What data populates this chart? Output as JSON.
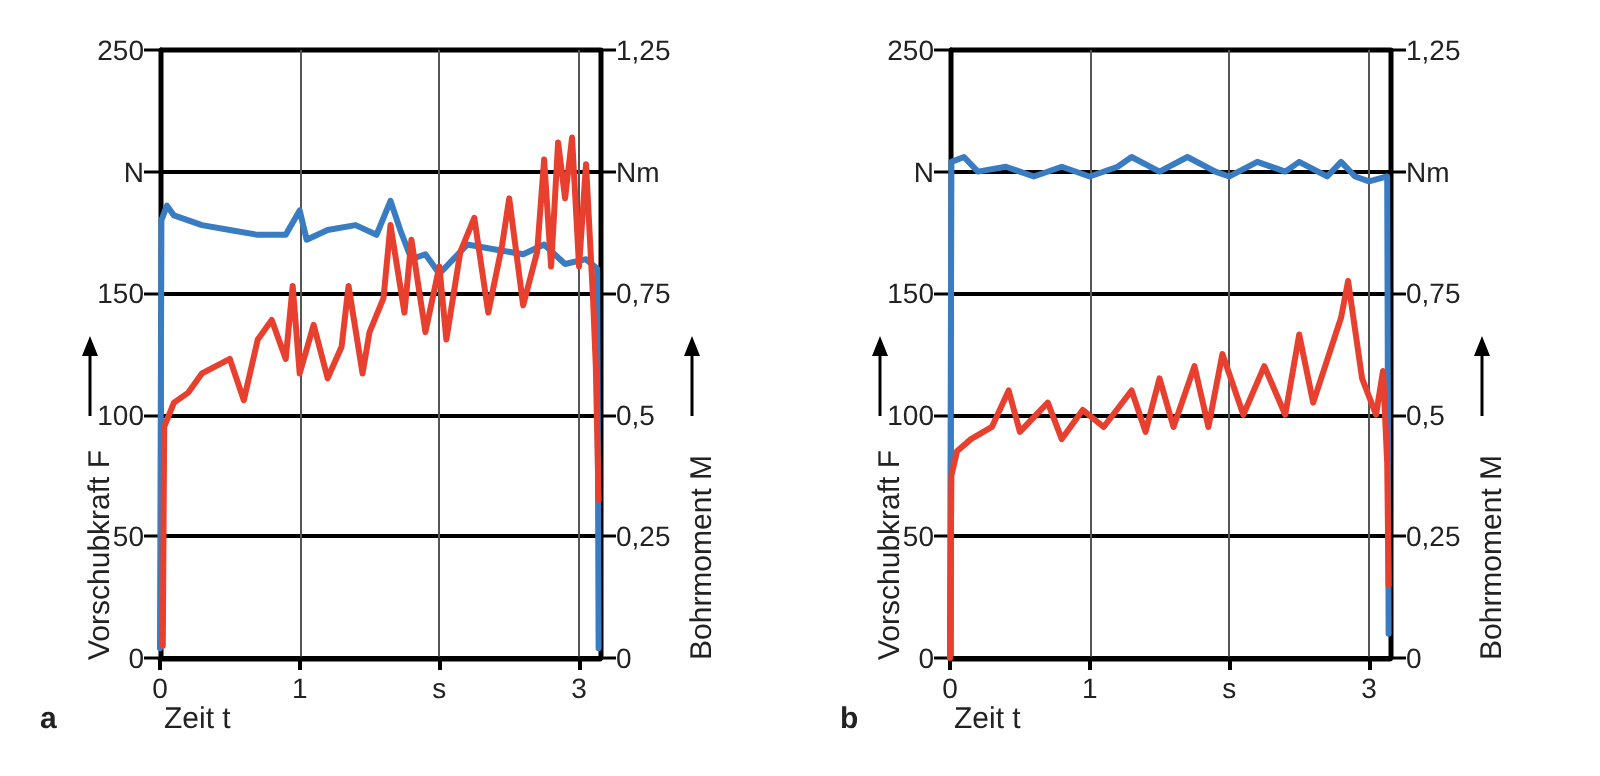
{
  "chart_data": [
    {
      "type": "line",
      "xlabel": "Zeit t",
      "ylabel": "Vorschubkraft F",
      "y2label": "Bohrmoment M",
      "annotations": [
        "a"
      ],
      "grid": true,
      "marker": "none",
      "line_style": "solid",
      "xlim": [
        0,
        3.15
      ],
      "xticks": [
        0,
        1,
        {
          "value": 2,
          "label": "s"
        },
        3
      ],
      "ylim": [
        0,
        250
      ],
      "yticks": [
        0,
        50,
        100,
        150,
        {
          "value": 200,
          "label": "N"
        },
        250
      ],
      "y2lim": [
        0,
        1.25
      ],
      "y2ticks": [
        {
          "value": 0,
          "label": "0"
        },
        {
          "value": 0.25,
          "label": "0,25"
        },
        {
          "value": 0.5,
          "label": "0,5"
        },
        {
          "value": 0.75,
          "label": "0,75"
        },
        {
          "value": 1,
          "label": "Nm"
        },
        {
          "value": 1.25,
          "label": "1,25"
        }
      ],
      "series": [
        {
          "color": "#3a7cc2",
          "axis": "y2",
          "x": [
            0,
            0.01,
            0.05,
            0.1,
            0.3,
            0.5,
            0.7,
            0.9,
            1.0,
            1.05,
            1.2,
            1.4,
            1.55,
            1.65,
            1.72,
            1.8,
            1.9,
            2.0,
            2.1,
            2.2,
            2.4,
            2.6,
            2.75,
            2.9,
            3.05,
            3.13,
            3.14
          ],
          "values": [
            0.02,
            0.9,
            0.93,
            0.91,
            0.89,
            0.88,
            0.87,
            0.87,
            0.92,
            0.86,
            0.88,
            0.89,
            0.87,
            0.94,
            0.88,
            0.82,
            0.83,
            0.79,
            0.82,
            0.85,
            0.84,
            0.83,
            0.85,
            0.81,
            0.82,
            0.8,
            0.02
          ]
        },
        {
          "color": "#e8402f",
          "axis": "y",
          "x": [
            0.02,
            0.03,
            0.1,
            0.2,
            0.3,
            0.5,
            0.6,
            0.7,
            0.8,
            0.9,
            0.95,
            1.0,
            1.1,
            1.2,
            1.3,
            1.35,
            1.45,
            1.5,
            1.6,
            1.65,
            1.75,
            1.8,
            1.9,
            2.0,
            2.05,
            2.15,
            2.25,
            2.35,
            2.45,
            2.5,
            2.6,
            2.7,
            2.75,
            2.8,
            2.85,
            2.9,
            2.95,
            3.0,
            3.05,
            3.1,
            3.12,
            3.14
          ],
          "values": [
            5,
            95,
            105,
            109,
            117,
            123,
            106,
            131,
            139,
            123,
            153,
            117,
            137,
            115,
            128,
            153,
            117,
            134,
            148,
            178,
            142,
            172,
            134,
            161,
            131,
            167,
            181,
            142,
            170,
            189,
            145,
            167,
            205,
            161,
            212,
            189,
            214,
            161,
            203,
            148,
            120,
            65
          ]
        }
      ]
    },
    {
      "type": "line",
      "xlabel": "Zeit t",
      "ylabel": "Vorschubkraft F",
      "y2label": "Bohrmoment M",
      "annotations": [
        "b"
      ],
      "grid": true,
      "marker": "none",
      "line_style": "solid",
      "xlim": [
        0,
        3.15
      ],
      "xticks": [
        0,
        1,
        {
          "value": 2,
          "label": "s"
        },
        3
      ],
      "ylim": [
        0,
        250
      ],
      "yticks": [
        0,
        50,
        100,
        150,
        {
          "value": 200,
          "label": "N"
        },
        250
      ],
      "y2lim": [
        0,
        1.25
      ],
      "y2ticks": [
        {
          "value": 0,
          "label": "0"
        },
        {
          "value": 0.25,
          "label": "0,25"
        },
        {
          "value": 0.5,
          "label": "0,5"
        },
        {
          "value": 0.75,
          "label": "0,75"
        },
        {
          "value": 1,
          "label": "Nm"
        },
        {
          "value": 1.25,
          "label": "1,25"
        }
      ],
      "series": [
        {
          "color": "#3a7cc2",
          "axis": "y2",
          "x": [
            0,
            0.01,
            0.1,
            0.2,
            0.4,
            0.6,
            0.8,
            1.0,
            1.2,
            1.3,
            1.5,
            1.7,
            1.9,
            2.0,
            2.2,
            2.4,
            2.5,
            2.7,
            2.8,
            2.9,
            3.0,
            3.13,
            3.14
          ],
          "values": [
            0.02,
            1.02,
            1.03,
            1.0,
            1.01,
            0.99,
            1.01,
            0.99,
            1.01,
            1.03,
            1.0,
            1.03,
            1.0,
            0.99,
            1.02,
            1.0,
            1.02,
            0.99,
            1.02,
            0.99,
            0.98,
            0.99,
            0.05
          ]
        },
        {
          "color": "#e8402f",
          "axis": "y",
          "x": [
            0,
            0.01,
            0.05,
            0.15,
            0.3,
            0.42,
            0.5,
            0.7,
            0.8,
            0.95,
            1.1,
            1.3,
            1.4,
            1.5,
            1.6,
            1.75,
            1.85,
            1.95,
            2.1,
            2.25,
            2.4,
            2.5,
            2.6,
            2.8,
            2.85,
            2.95,
            3.05,
            3.1,
            3.13,
            3.14
          ],
          "values": [
            0,
            75,
            85,
            90,
            95,
            110,
            93,
            105,
            90,
            102,
            95,
            110,
            93,
            115,
            95,
            120,
            95,
            125,
            100,
            120,
            100,
            133,
            105,
            140,
            155,
            115,
            100,
            118,
            80,
            30
          ]
        }
      ]
    }
  ]
}
